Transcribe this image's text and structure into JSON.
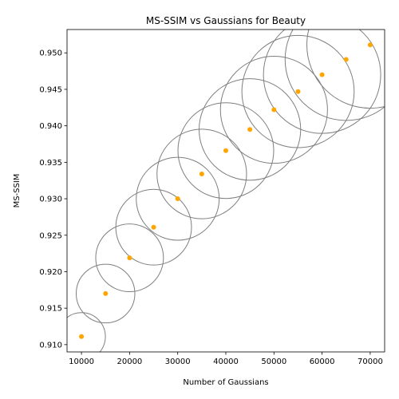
{
  "chart_data": {
    "type": "scatter",
    "title": "MS-SSIM vs Gaussians for Beauty",
    "xlabel": "Number of Gaussians",
    "ylabel": "MS-SSIM",
    "xlim": [
      7000,
      73000
    ],
    "ylim": [
      0.909,
      0.9532
    ],
    "xticks": [
      10000,
      20000,
      30000,
      40000,
      50000,
      60000,
      70000
    ],
    "xtick_labels": [
      "10000",
      "20000",
      "30000",
      "40000",
      "50000",
      "60000",
      "70000"
    ],
    "yticks": [
      0.91,
      0.915,
      0.92,
      0.925,
      0.93,
      0.935,
      0.94,
      0.945,
      0.95
    ],
    "ytick_labels": [
      "0.910",
      "0.915",
      "0.920",
      "0.925",
      "0.930",
      "0.935",
      "0.940",
      "0.945",
      "0.950"
    ],
    "grid": false,
    "legend": "none",
    "marker_color": "#ffa500",
    "bubble_edge_color": "#7f7f7f",
    "x": [
      10000,
      15000,
      20000,
      25000,
      30000,
      35000,
      40000,
      45000,
      50000,
      55000,
      60000,
      65000,
      70000
    ],
    "y": [
      0.9111,
      0.917,
      0.9219,
      0.9261,
      0.93,
      0.9334,
      0.9366,
      0.9395,
      0.9422,
      0.9447,
      0.947,
      0.9491,
      0.9511
    ]
  }
}
